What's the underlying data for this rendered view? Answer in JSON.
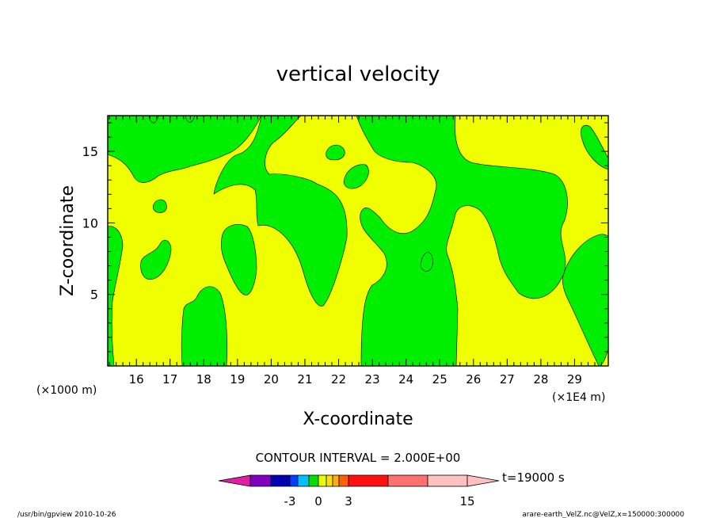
{
  "chart_data": {
    "type": "heatmap",
    "title": "vertical velocity",
    "xlabel": "X-coordinate",
    "ylabel": "Z-coordinate",
    "x_unit_left": "(×1000 m)",
    "x_unit_right": "(×1E4 m)",
    "x_ticks": [
      "16",
      "17",
      "18",
      "19",
      "20",
      "21",
      "22",
      "23",
      "24",
      "25",
      "26",
      "27",
      "28",
      "29"
    ],
    "y_ticks": [
      "5",
      "10",
      "15"
    ],
    "xlim": [
      151500,
      300000
    ],
    "ylim": [
      0,
      17500
    ],
    "contour_interval_text": "CONTOUR INTERVAL = 2.000E+00",
    "time_label": "t=19000 s",
    "colorbar": {
      "labels": [
        "-3",
        "0",
        "3",
        "15"
      ],
      "colors": [
        "#e020a0",
        "#8000c0",
        "#0000b0",
        "#0040ff",
        "#00c0ff",
        "#00e000",
        "#e8ff00",
        "#ffe000",
        "#ffb000",
        "#ff6000",
        "#ff1010",
        "#ff7070",
        "#ffc0c0"
      ]
    },
    "field_colors": {
      "positive": "#f0ff00",
      "negative": "#00ee00"
    },
    "footer_left": "/usr/bin/gpview   2010-10-26",
    "footer_right": "arare-earth_VelZ.nc@VelZ,x=150000:300000"
  }
}
